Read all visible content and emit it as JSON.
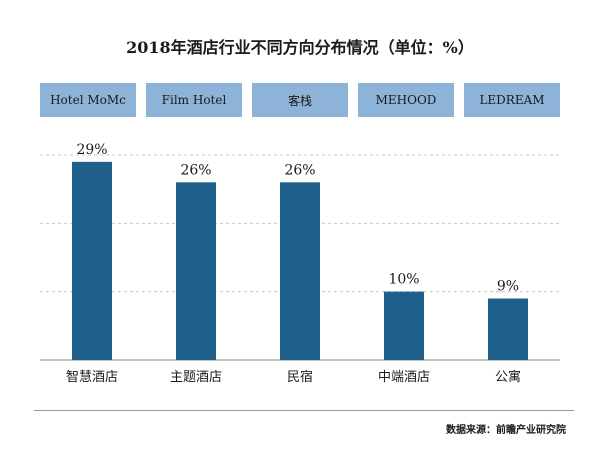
{
  "chart_data": {
    "type": "bar",
    "title": "2018年酒店行业不同方向分布情况（单位：%）",
    "categories": [
      "智慧酒店",
      "主题酒店",
      "民宿",
      "中端酒店",
      "公寓"
    ],
    "values": [
      29,
      26,
      26,
      10,
      9
    ],
    "value_labels": [
      "29%",
      "26%",
      "26%",
      "10%",
      "9%"
    ],
    "header_labels": [
      "Hotel MoMc",
      "Film Hotel",
      "客栈",
      "MEHOOD",
      "LEDREAM"
    ],
    "ylim": [
      0,
      30
    ],
    "grid": true,
    "bar_color": "#1f5f8b",
    "band_color": "#8db3d9"
  },
  "source": "数据来源：前瞻产业研究院"
}
